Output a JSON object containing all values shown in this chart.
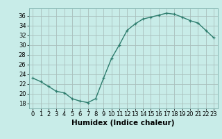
{
  "x": [
    0,
    1,
    2,
    3,
    4,
    5,
    6,
    7,
    8,
    9,
    10,
    11,
    12,
    13,
    14,
    15,
    16,
    17,
    18,
    19,
    20,
    21,
    22,
    23
  ],
  "y": [
    23.2,
    22.5,
    21.5,
    20.5,
    20.2,
    19.0,
    18.5,
    18.2,
    19.0,
    23.2,
    27.2,
    30.0,
    33.0,
    34.3,
    35.3,
    35.7,
    36.1,
    36.5,
    36.3,
    35.7,
    35.0,
    34.5,
    33.0,
    31.5
  ],
  "line_color": "#2e7d6e",
  "bg_color": "#c8ece8",
  "grid_color": "#aabfbc",
  "xlabel": "Humidex (Indice chaleur)",
  "xlim": [
    -0.5,
    23.5
  ],
  "ylim": [
    17,
    37.5
  ],
  "yticks": [
    18,
    20,
    22,
    24,
    26,
    28,
    30,
    32,
    34,
    36
  ],
  "xticks": [
    0,
    1,
    2,
    3,
    4,
    5,
    6,
    7,
    8,
    9,
    10,
    11,
    12,
    13,
    14,
    15,
    16,
    17,
    18,
    19,
    20,
    21,
    22,
    23
  ],
  "marker": "+",
  "marker_size": 3.5,
  "line_width": 1.0,
  "xlabel_fontsize": 7.5,
  "tick_fontsize": 6.0
}
